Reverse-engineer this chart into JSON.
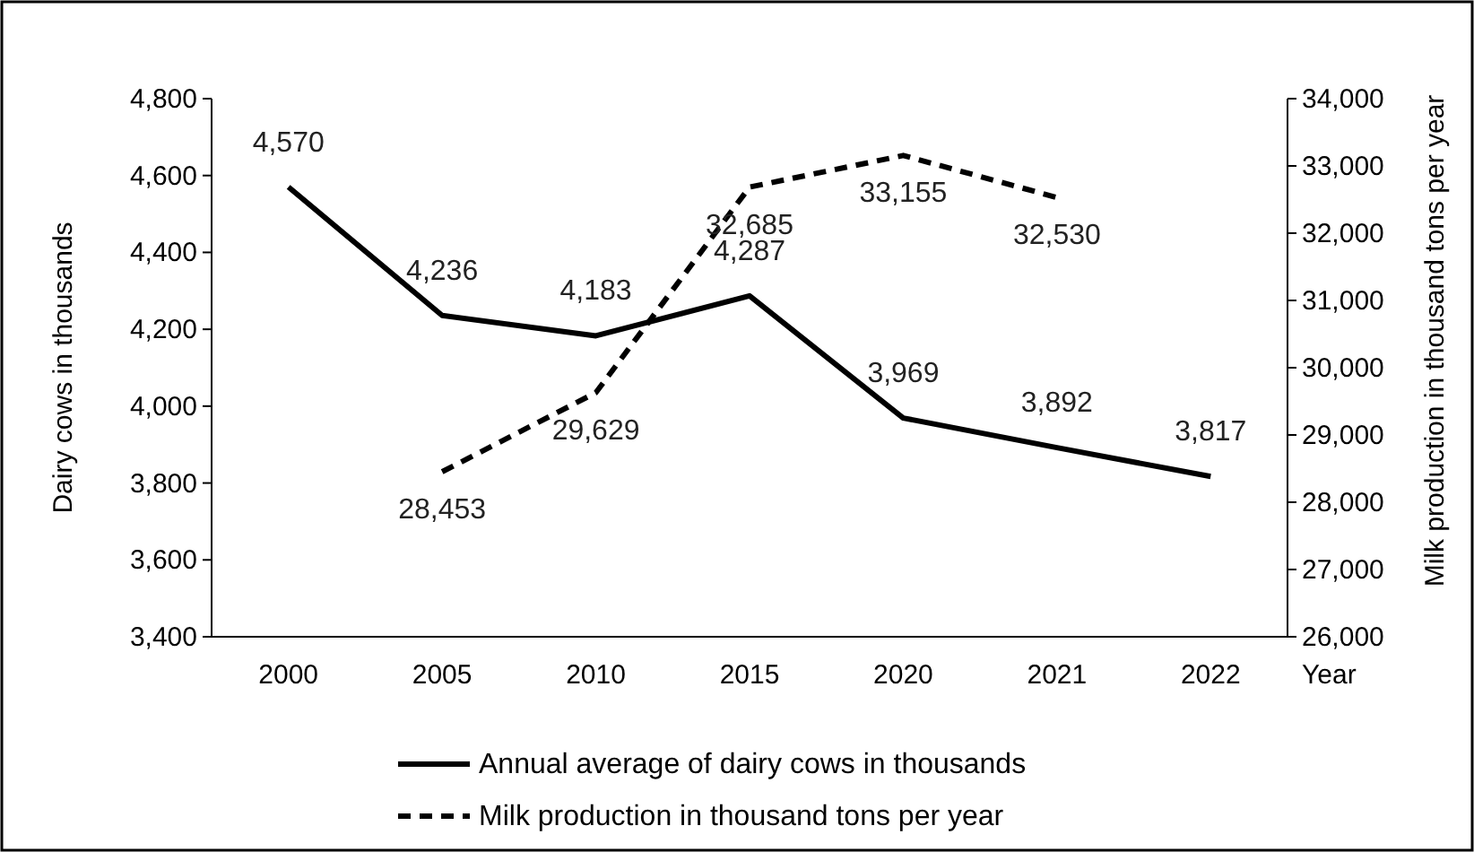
{
  "chart_data": {
    "type": "line",
    "xlabel": "Year",
    "ylabel": "Dairy cows in thousands",
    "y2label": "Milk production in thousand tons per year",
    "categories": [
      "2000",
      "2005",
      "2010",
      "2015",
      "2020",
      "2021",
      "2022"
    ],
    "series": [
      {
        "name": "Annual average of dairy cows in thousands",
        "color": "#000000",
        "line_style": "solid",
        "values": [
          4570,
          4236,
          4183,
          4287,
          3969,
          3892,
          3817
        ],
        "value_labels": [
          "4,570",
          "4,236",
          "4,183",
          "4,287",
          "3,969",
          "3,892",
          "3,817"
        ]
      },
      {
        "name": "Milk production in thousand tons per year",
        "color": "#000000",
        "line_style": "dashed",
        "axis": "y2",
        "values": [
          null,
          28453,
          29629,
          32685,
          33155,
          32530,
          null
        ],
        "value_labels": [
          null,
          "28,453",
          "29,629",
          "32,685",
          "33,155",
          "32,530",
          null
        ]
      }
    ],
    "ylim": [
      3400,
      4800
    ],
    "yticks": [
      {
        "value": 3400,
        "label": "3,400"
      },
      {
        "value": 3600,
        "label": "3,600"
      },
      {
        "value": 3800,
        "label": "3,800"
      },
      {
        "value": 4000,
        "label": "4,000"
      },
      {
        "value": 4200,
        "label": "4,200"
      },
      {
        "value": 4400,
        "label": "4,400"
      },
      {
        "value": 4600,
        "label": "4,600"
      },
      {
        "value": 4800,
        "label": "4,800"
      }
    ],
    "y2lim": [
      26000,
      34000
    ],
    "y2ticks": [
      {
        "value": 26000,
        "label": "26,000"
      },
      {
        "value": 27000,
        "label": "27,000"
      },
      {
        "value": 28000,
        "label": "28,000"
      },
      {
        "value": 29000,
        "label": "29,000"
      },
      {
        "value": 30000,
        "label": "30,000"
      },
      {
        "value": 31000,
        "label": "31,000"
      },
      {
        "value": 32000,
        "label": "32,000"
      },
      {
        "value": 33000,
        "label": "33,000"
      },
      {
        "value": 34000,
        "label": "34,000"
      }
    ],
    "legend": "bottom",
    "grid": false,
    "marker": "none"
  }
}
